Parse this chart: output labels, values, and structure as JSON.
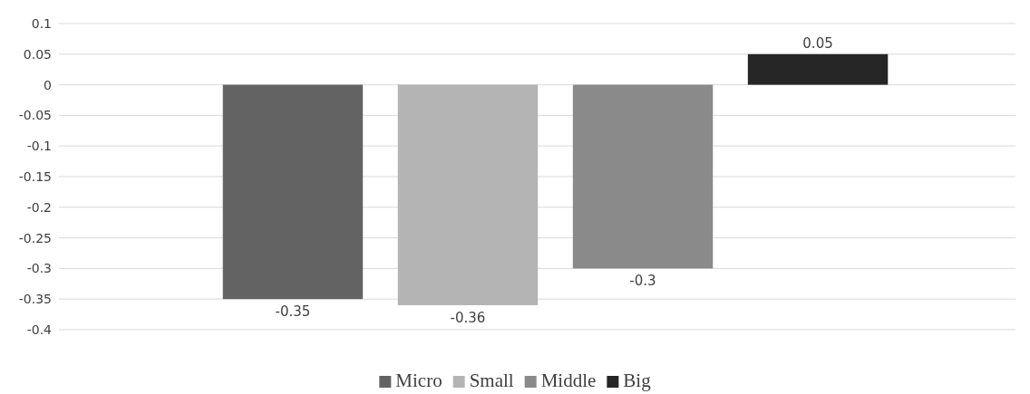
{
  "chart_data": {
    "type": "bar",
    "categories": [
      null
    ],
    "series": [
      {
        "name": "Micro",
        "color": "#636363",
        "values": [
          -0.35
        ]
      },
      {
        "name": "Small",
        "color": "#b4b4b4",
        "values": [
          -0.36
        ]
      },
      {
        "name": "Middle",
        "color": "#8a8a8a",
        "values": [
          -0.3
        ]
      },
      {
        "name": "Big",
        "color": "#262626",
        "values": [
          0.05
        ]
      }
    ],
    "ylim": [
      -0.4,
      0.1
    ],
    "yticks": [
      0.1,
      0.05,
      0,
      -0.05,
      -0.1,
      -0.15,
      -0.2,
      -0.25,
      -0.3,
      -0.35,
      -0.4
    ],
    "grid": "y",
    "legend": "bottom",
    "data_labels": true
  }
}
